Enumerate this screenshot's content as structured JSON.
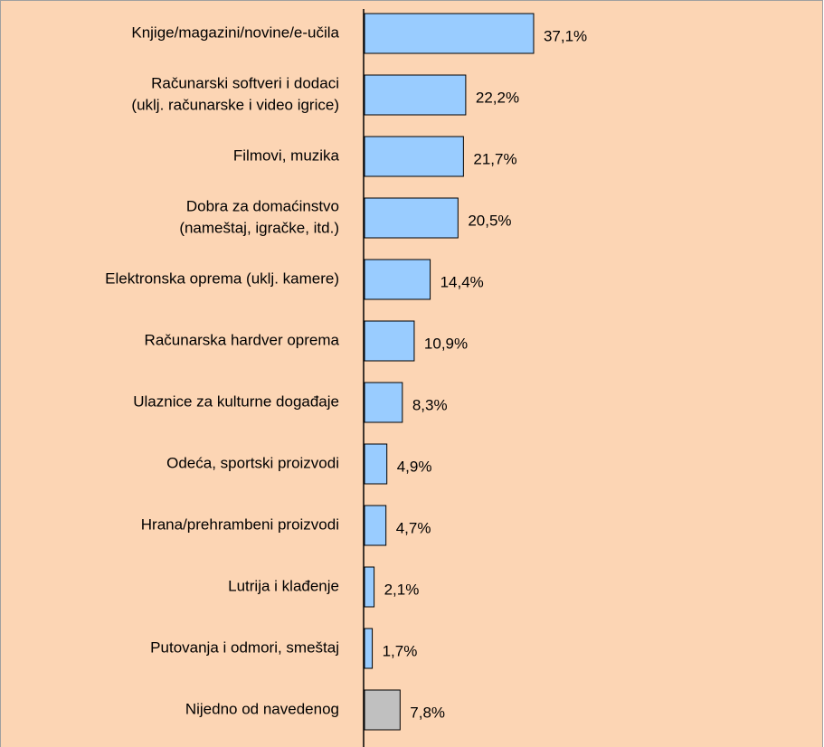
{
  "chart_data": {
    "type": "barh",
    "categories": [
      [
        "Knjige/magazini/novine/e-učila"
      ],
      [
        "Računarski softveri i dodaci",
        "(uklj. računarske i video igrice)"
      ],
      [
        "Filmovi, muzika"
      ],
      [
        "Dobra za domaćinstvo",
        "(nameštaj, igračke, itd.)"
      ],
      [
        "Elektronska oprema (uklj. kamere)"
      ],
      [
        "Računarska hardver oprema"
      ],
      [
        "Ulaznice za kulturne događaje"
      ],
      [
        "Odeća, sportski proizvodi"
      ],
      [
        "Hrana/prehrambeni proizvodi"
      ],
      [
        "Lutrija i klađenje"
      ],
      [
        "Putovanja i odmori, smeštaj"
      ],
      [
        "Nijedno od navedenog"
      ]
    ],
    "values": [
      37.1,
      22.2,
      21.7,
      20.5,
      14.4,
      10.9,
      8.3,
      4.9,
      4.7,
      2.1,
      1.7,
      7.8
    ],
    "value_labels": [
      "37,1%",
      "22,2%",
      "21,7%",
      "20,5%",
      "14,4%",
      "10,9%",
      "8,3%",
      "4,9%",
      "4,7%",
      "2,1%",
      "1,7%",
      "7,8%"
    ],
    "colors": [
      "#99ccff",
      "#99ccff",
      "#99ccff",
      "#99ccff",
      "#99ccff",
      "#99ccff",
      "#99ccff",
      "#99ccff",
      "#99ccff",
      "#99ccff",
      "#99ccff",
      "#c0c0c0"
    ]
  }
}
